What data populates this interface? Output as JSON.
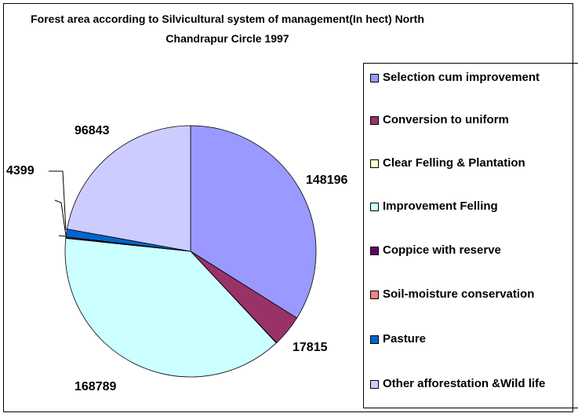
{
  "chart_data": {
    "type": "pie",
    "title": "Forest area according to Silvicultural system of management(In hect) North Chandrapur Circle 1997",
    "categories": [
      "Selection cum improvement",
      "Conversion to uniform",
      "Clear Felling & Plantation",
      "Improvement Felling",
      "Coppice with reserve",
      "Soil-moisture conservation",
      "Pasture",
      "Other afforestation &Wild life"
    ],
    "values": [
      148196,
      17815,
      200,
      168789,
      300,
      500,
      4399,
      96843
    ],
    "colors": [
      "#9999ff",
      "#993366",
      "#ffffcc",
      "#ccffff",
      "#660066",
      "#ff8080",
      "#0066cc",
      "#ccccff"
    ]
  }
}
